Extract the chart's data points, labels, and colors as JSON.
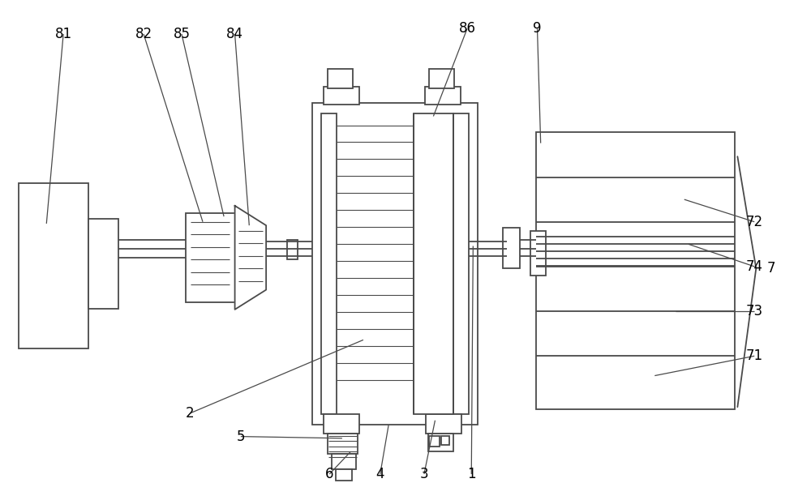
{
  "bg": "#ffffff",
  "lc": "#4a4a4a",
  "lw": 1.3,
  "lw_thin": 0.8,
  "fs": 12,
  "fig_w": 10.0,
  "fig_h": 5.96
}
